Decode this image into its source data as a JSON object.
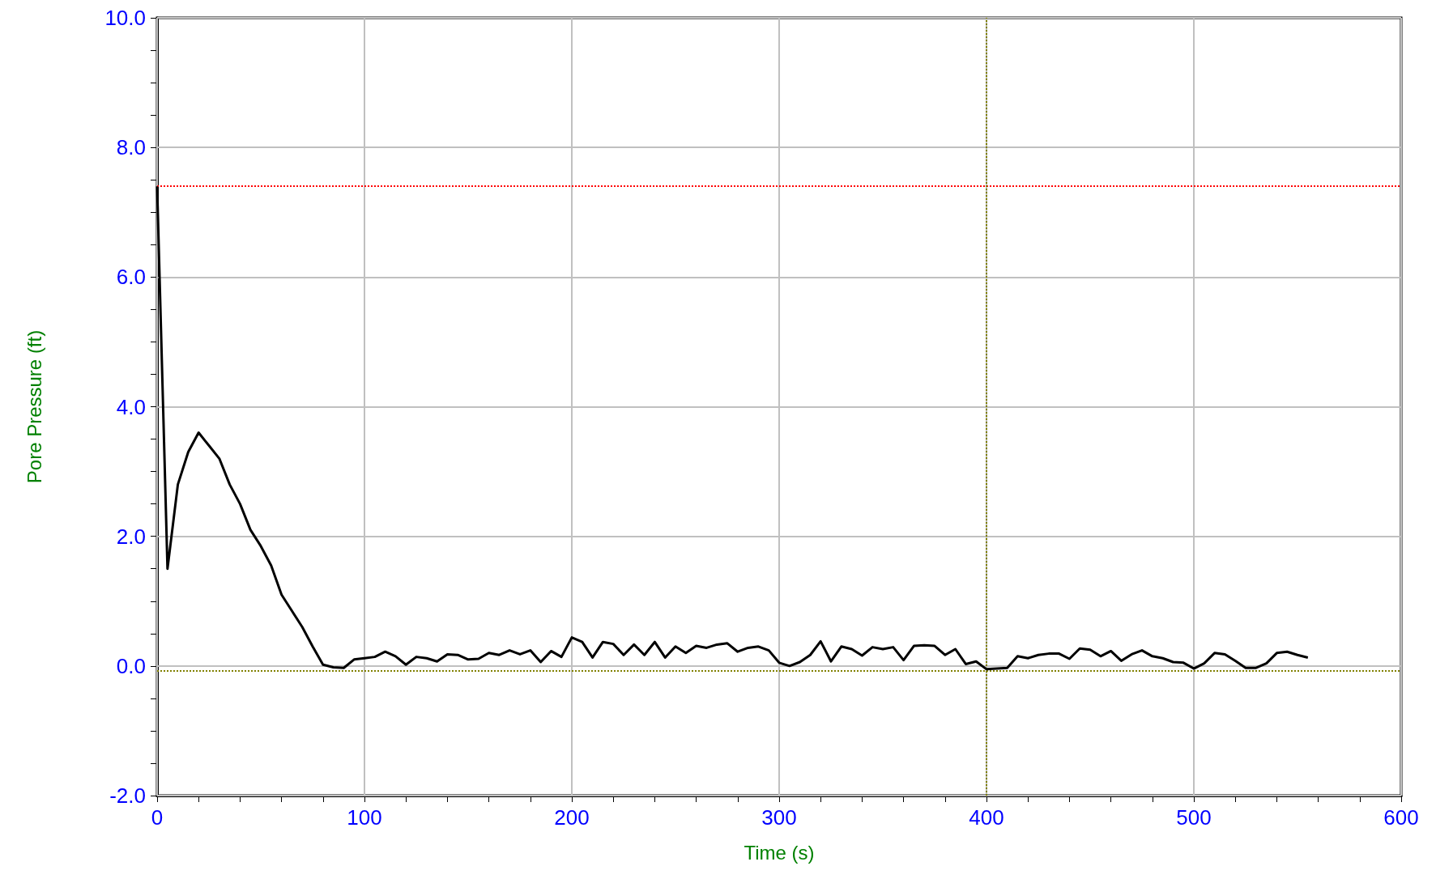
{
  "chart_data": {
    "type": "line",
    "xlabel": "Time (s)",
    "ylabel": "Pore Pressure (ft)",
    "x": [
      0,
      5,
      10,
      15,
      20,
      25,
      30,
      35,
      40,
      45,
      50,
      55,
      60,
      65,
      70,
      75,
      80,
      85,
      90,
      95,
      100,
      105,
      110,
      115,
      120,
      125,
      130,
      135,
      140,
      145,
      150,
      155,
      160,
      165,
      170,
      175,
      180,
      185,
      190,
      195,
      200,
      205,
      210,
      215,
      220,
      225,
      230,
      235,
      240,
      245,
      250,
      255,
      260,
      265,
      270,
      275,
      280,
      285,
      290,
      295,
      300,
      305,
      310,
      315,
      320,
      325,
      330,
      335,
      340,
      345,
      350,
      355,
      360,
      365,
      370,
      375,
      380,
      385,
      390,
      395,
      400,
      405,
      410,
      415,
      420,
      425,
      430,
      435,
      440,
      445,
      450,
      455,
      460,
      465,
      470,
      475,
      480,
      485,
      490,
      495,
      500,
      505,
      510,
      515,
      520,
      525,
      530,
      535,
      540,
      545,
      550,
      555
    ],
    "series": [
      {
        "color": "#000000",
        "values": [
          7.4,
          1.5,
          2.8,
          3.3,
          3.6,
          3.4,
          3.2,
          2.8,
          2.5,
          2.1,
          1.85,
          1.55,
          1.1,
          0.85,
          0.6,
          0.3,
          0.02,
          -0.02,
          -0.03,
          0.1,
          0.12,
          0.14,
          0.22,
          0.15,
          0.02,
          0.14,
          0.12,
          0.07,
          0.18,
          0.17,
          0.1,
          0.11,
          0.2,
          0.17,
          0.24,
          0.18,
          0.24,
          0.06,
          0.23,
          0.14,
          0.44,
          0.37,
          0.13,
          0.37,
          0.34,
          0.17,
          0.33,
          0.17,
          0.37,
          0.13,
          0.3,
          0.2,
          0.31,
          0.28,
          0.33,
          0.35,
          0.22,
          0.28,
          0.3,
          0.24,
          0.05,
          0.0,
          0.06,
          0.17,
          0.38,
          0.07,
          0.3,
          0.26,
          0.16,
          0.29,
          0.26,
          0.29,
          0.09,
          0.31,
          0.32,
          0.31,
          0.17,
          0.26,
          0.03,
          0.07,
          -0.05,
          -0.04,
          -0.03,
          0.15,
          0.12,
          0.17,
          0.19,
          0.19,
          0.11,
          0.27,
          0.25,
          0.15,
          0.23,
          0.08,
          0.18,
          0.24,
          0.15,
          0.12,
          0.06,
          0.05,
          -0.04,
          0.04,
          0.2,
          0.18,
          0.08,
          -0.03,
          -0.03,
          0.04,
          0.2,
          0.22,
          0.17,
          0.13
        ]
      }
    ],
    "xlim": [
      0,
      600
    ],
    "xticks": [
      0,
      {
        "value": 20,
        "label": null
      },
      {
        "value": 40,
        "label": null
      },
      {
        "value": 60,
        "label": null
      },
      {
        "value": 80,
        "label": null
      },
      100,
      {
        "value": 120,
        "label": null
      },
      {
        "value": 140,
        "label": null
      },
      {
        "value": 160,
        "label": null
      },
      {
        "value": 180,
        "label": null
      },
      200,
      {
        "value": 220,
        "label": null
      },
      {
        "value": 240,
        "label": null
      },
      {
        "value": 260,
        "label": null
      },
      {
        "value": 280,
        "label": null
      },
      300,
      {
        "value": 320,
        "label": null
      },
      {
        "value": 340,
        "label": null
      },
      {
        "value": 360,
        "label": null
      },
      {
        "value": 380,
        "label": null
      },
      400,
      {
        "value": 420,
        "label": null
      },
      {
        "value": 440,
        "label": null
      },
      {
        "value": 460,
        "label": null
      },
      {
        "value": 480,
        "label": null
      },
      500,
      {
        "value": 520,
        "label": null
      },
      {
        "value": 540,
        "label": null
      },
      {
        "value": 560,
        "label": null
      },
      {
        "value": 580,
        "label": null
      },
      600
    ],
    "ylim": [
      -2,
      10
    ],
    "yticks": [
      {
        "value": -2,
        "label": "-2.0"
      },
      {
        "value": -1.5,
        "label": null
      },
      {
        "value": -1,
        "label": null
      },
      {
        "value": -0.5,
        "label": null
      },
      {
        "value": 0,
        "label": "0.0"
      },
      {
        "value": 0.5,
        "label": null
      },
      {
        "value": 1,
        "label": null
      },
      {
        "value": 1.5,
        "label": null
      },
      {
        "value": 2,
        "label": "2.0"
      },
      {
        "value": 2.5,
        "label": null
      },
      {
        "value": 3,
        "label": null
      },
      {
        "value": 3.5,
        "label": null
      },
      {
        "value": 4,
        "label": "4.0"
      },
      {
        "value": 4.5,
        "label": null
      },
      {
        "value": 5,
        "label": null
      },
      {
        "value": 5.5,
        "label": null
      },
      {
        "value": 6,
        "label": "6.0"
      },
      {
        "value": 6.5,
        "label": null
      },
      {
        "value": 7,
        "label": null
      },
      {
        "value": 7.5,
        "label": null
      },
      {
        "value": 8,
        "label": "8.0"
      },
      {
        "value": 8.5,
        "label": null
      },
      {
        "value": 9,
        "label": null
      },
      {
        "value": 9.5,
        "label": null
      },
      {
        "value": 10,
        "label": "10.0"
      }
    ],
    "ref_lines": [
      {
        "axis": "y",
        "value": 7.4,
        "color": "#ff0000",
        "line_style": "dotted"
      },
      {
        "axis": "y",
        "value": -0.07,
        "color": "#808000",
        "line_style": "dotted"
      },
      {
        "axis": "x",
        "value": 400,
        "color": "#808000",
        "line_style": "dotted"
      }
    ],
    "grid": true,
    "marker": "none",
    "line_style": "solid"
  }
}
